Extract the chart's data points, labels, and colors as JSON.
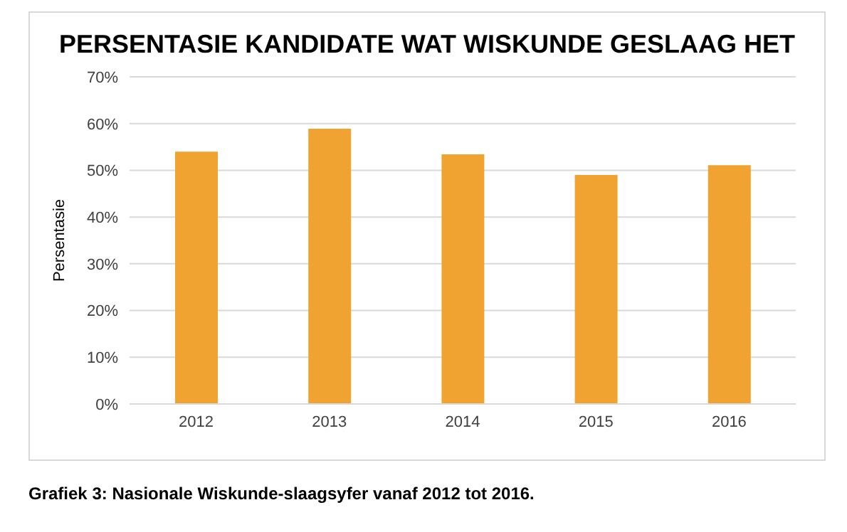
{
  "chart_data": {
    "type": "bar",
    "title": "PERSENTASIE KANDIDATE WAT WISKUNDE GESLAAG HET",
    "ylabel": "Persentasie",
    "categories": [
      "2012",
      "2013",
      "2014",
      "2015",
      "2016"
    ],
    "values": [
      54,
      58.9,
      53.4,
      49,
      51.1
    ],
    "color": "#f0a330",
    "ylim": [
      0,
      70
    ],
    "yticks": [
      {
        "value": 0,
        "label": "0%"
      },
      {
        "value": 10,
        "label": "10%"
      },
      {
        "value": 20,
        "label": "20%"
      },
      {
        "value": 30,
        "label": "30%"
      },
      {
        "value": 40,
        "label": "40%"
      },
      {
        "value": 50,
        "label": "50%"
      },
      {
        "value": 60,
        "label": "60%"
      },
      {
        "value": 70,
        "label": "70%"
      }
    ],
    "grid": "y",
    "annotations": [
      "Grafiek 3: Nasionale Wiskunde-slaagsyfer vanaf 2012 tot 2016."
    ]
  }
}
